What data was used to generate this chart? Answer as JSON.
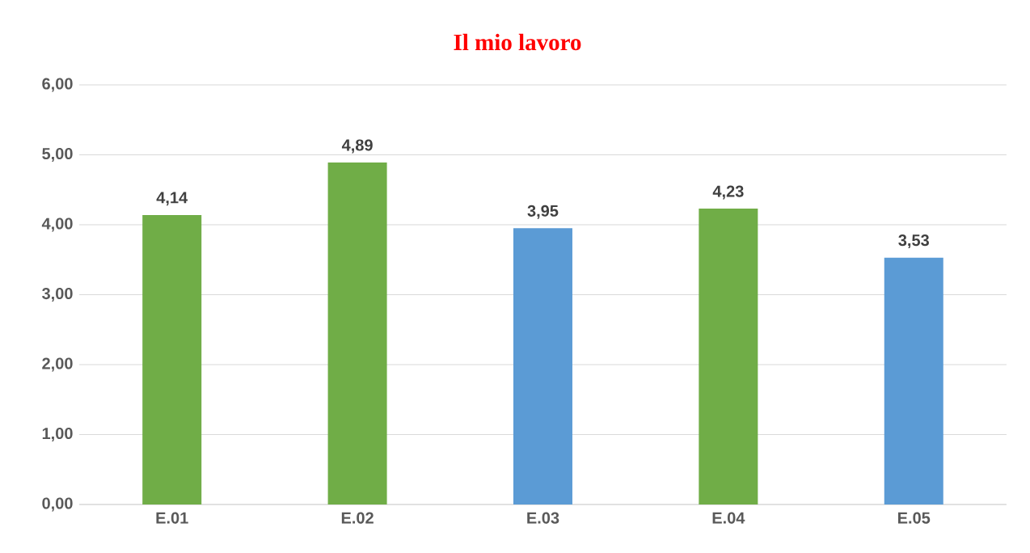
{
  "chart_data": {
    "type": "bar",
    "title": "Il mio lavoro",
    "categories": [
      "E.01",
      "E.02",
      "E.03",
      "E.04",
      "E.05"
    ],
    "values": [
      4.14,
      4.89,
      3.95,
      4.23,
      3.53
    ],
    "colors": [
      "#70ad47",
      "#70ad47",
      "#5b9bd5",
      "#70ad47",
      "#5b9bd5"
    ],
    "value_labels": [
      "4,14",
      "4,89",
      "3,95",
      "4,23",
      "3,53"
    ],
    "ylim": [
      0,
      6
    ],
    "yticks": [
      {
        "value": 0,
        "label": "0,00"
      },
      {
        "value": 1,
        "label": "1,00"
      },
      {
        "value": 2,
        "label": "2,00"
      },
      {
        "value": 3,
        "label": "3,00"
      },
      {
        "value": 4,
        "label": "4,00"
      },
      {
        "value": 5,
        "label": "5,00"
      },
      {
        "value": 6,
        "label": "6,00"
      }
    ],
    "grid": "y"
  }
}
